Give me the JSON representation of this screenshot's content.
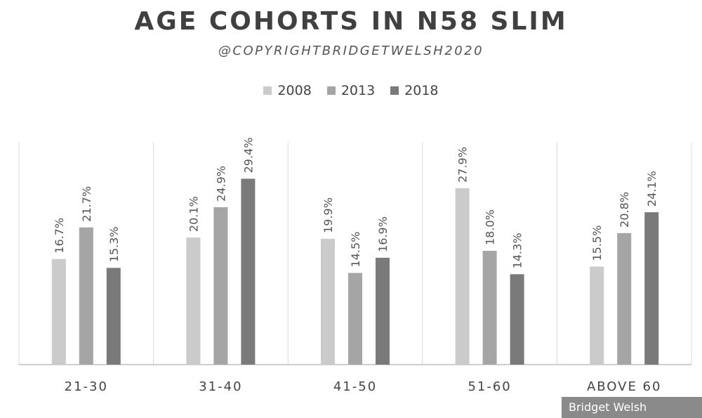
{
  "chart_data": {
    "type": "bar",
    "title": "AGE COHORTS IN N58 SLIM",
    "subtitle": "@COPYRIGHTBRIDGETWELSH2020",
    "categories": [
      "21-30",
      "31-40",
      "41-50",
      "51-60",
      "ABOVE 60"
    ],
    "series": [
      {
        "name": "2008",
        "color": "#cbcbcb",
        "values": [
          16.7,
          20.1,
          19.9,
          27.9,
          15.5
        ],
        "labels": [
          "16.7%",
          "20.1%",
          "19.9%",
          "27.9%",
          "15.5%"
        ]
      },
      {
        "name": "2013",
        "color": "#a5a5a5",
        "values": [
          21.7,
          24.9,
          14.5,
          18.0,
          20.8
        ],
        "labels": [
          "21.7%",
          "24.9%",
          "14.5%",
          "18.0%",
          "20.8%"
        ]
      },
      {
        "name": "2018",
        "color": "#7a7a7a",
        "values": [
          15.3,
          29.4,
          16.9,
          14.3,
          24.1
        ],
        "labels": [
          "15.3%",
          "29.4%",
          "16.9%",
          "14.3%",
          "24.1%"
        ]
      }
    ],
    "xlabel": "",
    "ylabel": "",
    "ylim": [
      0,
      32
    ],
    "grid": false,
    "legend_position": "top-center"
  },
  "watermark": "Bridget Welsh"
}
